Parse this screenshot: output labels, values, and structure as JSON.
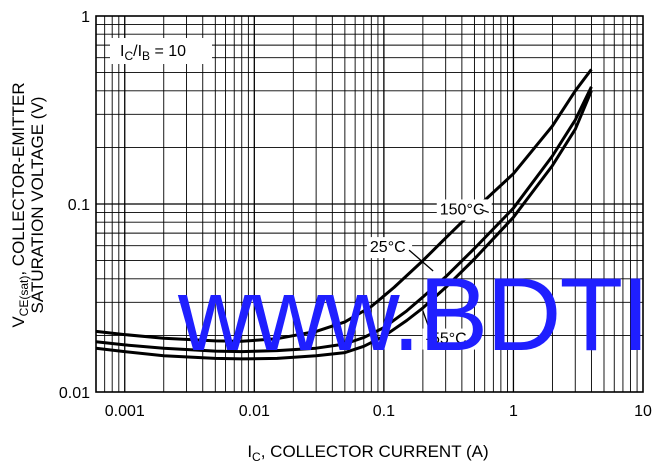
{
  "chart_data": {
    "type": "line",
    "title": "",
    "xlabel": {
      "main": "I",
      "sub": "C",
      "rest": ", COLLECTOR CURRENT (A)"
    },
    "ylabel": {
      "line1": {
        "main": "V",
        "sub": "CE(sat)",
        "rest": ", COLLECTOR-EMITTER"
      },
      "line2": "SATURATION VOLTAGE (V)"
    },
    "x_scale": "log",
    "y_scale": "log",
    "xlim": [
      0.0006,
      10
    ],
    "ylim": [
      0.01,
      1
    ],
    "x_ticks": [
      {
        "value": 0.001,
        "label": "0.001"
      },
      {
        "value": 0.01,
        "label": "0.01"
      },
      {
        "value": 0.1,
        "label": "0.1"
      },
      {
        "value": 1,
        "label": "1"
      },
      {
        "value": 10,
        "label": "10"
      }
    ],
    "y_ticks": [
      {
        "value": 0.01,
        "label": "0.01"
      },
      {
        "value": 0.1,
        "label": "0.1"
      },
      {
        "value": 1,
        "label": "1"
      }
    ],
    "grid": true,
    "condition_label": {
      "main": "I",
      "sub1": "C",
      "mid": "/I",
      "sub2": "B",
      "rest": " = 10"
    },
    "series": [
      {
        "name": "150°C",
        "points": [
          [
            0.0006,
            0.021
          ],
          [
            0.001,
            0.0202
          ],
          [
            0.002,
            0.0193
          ],
          [
            0.005,
            0.0187
          ],
          [
            0.008,
            0.0186
          ],
          [
            0.015,
            0.0192
          ],
          [
            0.03,
            0.021
          ],
          [
            0.05,
            0.0236
          ],
          [
            0.08,
            0.0285
          ],
          [
            0.12,
            0.036
          ],
          [
            0.2,
            0.05
          ],
          [
            0.3,
            0.066
          ],
          [
            0.5,
            0.093
          ],
          [
            1,
            0.145
          ],
          [
            2,
            0.26
          ],
          [
            3,
            0.4
          ],
          [
            4,
            0.52
          ]
        ]
      },
      {
        "name": "25°C",
        "points": [
          [
            0.0006,
            0.0185
          ],
          [
            0.001,
            0.0178
          ],
          [
            0.002,
            0.0171
          ],
          [
            0.005,
            0.0165
          ],
          [
            0.008,
            0.0164
          ],
          [
            0.015,
            0.0166
          ],
          [
            0.03,
            0.0171
          ],
          [
            0.05,
            0.018
          ],
          [
            0.07,
            0.0195
          ],
          [
            0.1,
            0.022
          ],
          [
            0.15,
            0.027
          ],
          [
            0.2,
            0.032
          ],
          [
            0.3,
            0.041
          ],
          [
            0.5,
            0.058
          ],
          [
            1,
            0.095
          ],
          [
            2,
            0.18
          ],
          [
            3,
            0.28
          ],
          [
            4,
            0.42
          ]
        ]
      },
      {
        "name": "-55°C",
        "points": [
          [
            0.0006,
            0.0171
          ],
          [
            0.001,
            0.0164
          ],
          [
            0.002,
            0.0156
          ],
          [
            0.005,
            0.0151
          ],
          [
            0.008,
            0.015
          ],
          [
            0.015,
            0.0151
          ],
          [
            0.03,
            0.0156
          ],
          [
            0.05,
            0.0162
          ],
          [
            0.07,
            0.0175
          ],
          [
            0.1,
            0.0198
          ],
          [
            0.15,
            0.024
          ],
          [
            0.2,
            0.028
          ],
          [
            0.3,
            0.036
          ],
          [
            0.5,
            0.051
          ],
          [
            1,
            0.085
          ],
          [
            2,
            0.16
          ],
          [
            3,
            0.25
          ],
          [
            4,
            0.4
          ]
        ]
      }
    ],
    "curve_labels": [
      {
        "text": "150°C",
        "at": [
          0.27,
          0.088
        ],
        "arrow_to": [
          0.55,
          0.094
        ]
      },
      {
        "text": "25°C",
        "at": [
          0.078,
          0.0555
        ],
        "arrow_to": [
          0.24,
          0.044
        ]
      },
      {
        "text": "-55°C",
        "at": [
          0.21,
          0.0181
        ],
        "arrow_to": [
          0.2,
          0.027
        ]
      }
    ],
    "watermark": "www.BDTI",
    "colors": {
      "curves": "#000000",
      "grid": "#000000",
      "watermark": "#1f1fff"
    }
  }
}
